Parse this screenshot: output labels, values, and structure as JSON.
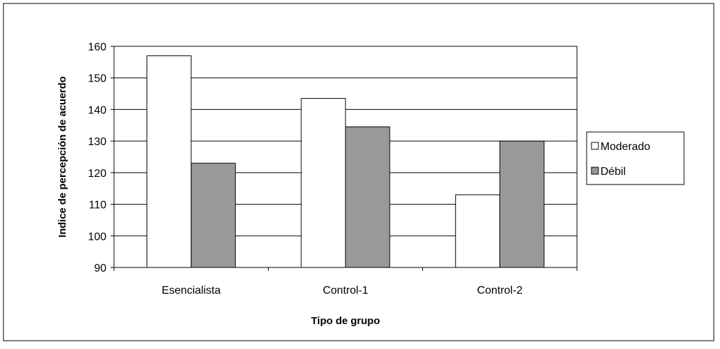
{
  "chart_data": {
    "type": "bar",
    "title": "",
    "xlabel": "Tipo de grupo",
    "ylabel": "Indice de percepción de acuerdo",
    "categories": [
      "Esencialista",
      "Control-1",
      "Control-2"
    ],
    "series": [
      {
        "name": "Moderado",
        "values": [
          157,
          143.5,
          113
        ],
        "color": "#ffffff"
      },
      {
        "name": "Débil",
        "values": [
          123,
          134.5,
          130
        ],
        "color": "#999999"
      }
    ],
    "ylim": [
      90,
      160
    ],
    "yticks": [
      90,
      100,
      110,
      120,
      130,
      140,
      150,
      160
    ],
    "grid": true,
    "legend": "right"
  }
}
